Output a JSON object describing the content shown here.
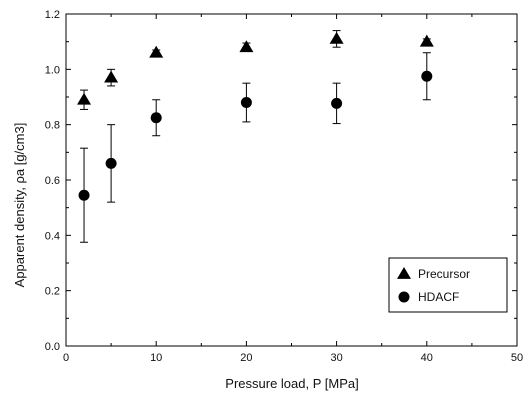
{
  "chart_data": {
    "type": "scatter",
    "xlabel": "Pressure load, P  [MPa]",
    "ylabel": "Apparent density, ρa [g/cm3]",
    "xlim": [
      0,
      50
    ],
    "ylim": [
      0.0,
      1.2
    ],
    "xticks": [
      "0",
      "10",
      "20",
      "30",
      "40",
      "50"
    ],
    "yticks": [
      "0.0",
      "0.2",
      "0.4",
      "0.6",
      "0.8",
      "1.0",
      "1.2"
    ],
    "grid": false,
    "legend_position": "bottom-right",
    "series": [
      {
        "name": "Precursor",
        "marker": "triangle",
        "color": "#000000",
        "points": [
          {
            "x": 2,
            "y": 0.89,
            "err": 0.035
          },
          {
            "x": 5,
            "y": 0.97,
            "err": 0.03
          },
          {
            "x": 10,
            "y": 1.06,
            "err": 0.01
          },
          {
            "x": 20,
            "y": 1.08,
            "err": 0.015
          },
          {
            "x": 30,
            "y": 1.11,
            "err": 0.03
          },
          {
            "x": 40,
            "y": 1.1,
            "err": 0.01
          }
        ]
      },
      {
        "name": "HDACF",
        "marker": "circle",
        "color": "#000000",
        "points": [
          {
            "x": 2,
            "y": 0.545,
            "err": 0.17
          },
          {
            "x": 5,
            "y": 0.66,
            "err": 0.14
          },
          {
            "x": 10,
            "y": 0.825,
            "err": 0.065
          },
          {
            "x": 20,
            "y": 0.88,
            "err": 0.07
          },
          {
            "x": 30,
            "y": 0.877,
            "err": 0.073
          },
          {
            "x": 40,
            "y": 0.975,
            "err": 0.085
          }
        ]
      }
    ]
  }
}
